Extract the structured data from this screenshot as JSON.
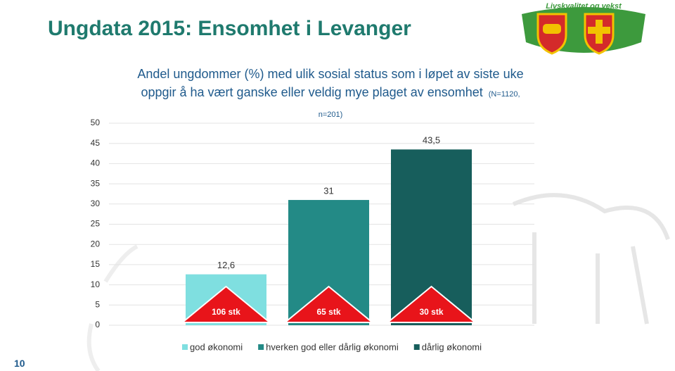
{
  "slide_title": "Ungdata 2015: Ensomhet i Levanger",
  "logo_text": "Livskvalitet og vekst",
  "page_number": "10",
  "chart_data": {
    "type": "bar",
    "title": "Andel ungdommer (%) med ulik sosial status som i løpet av siste uke oppgir å ha vært ganske eller veldig mye plaget av ensomhet",
    "subtitle": "(N=1120, n=201)",
    "series": [
      {
        "name": "god økonomi",
        "color": "#7fdfe0",
        "values": [
          12.6
        ],
        "value_labels": [
          "12,6"
        ]
      },
      {
        "name": "hverken god eller dårlig økonomi",
        "color": "#238a86",
        "values": [
          31
        ]
      },
      {
        "name": "dårlig økonomi",
        "color": "#175e5c",
        "values": [
          43.5
        ],
        "value_labels": [
          "43,5"
        ]
      }
    ],
    "annotations": [
      "106 stk",
      "65 stk",
      "30 stk"
    ],
    "ylim": [
      0,
      50
    ],
    "yticks": [
      0,
      5,
      10,
      15,
      20,
      25,
      30,
      35,
      40,
      45,
      50
    ],
    "grid": true,
    "legend": "bottom"
  }
}
